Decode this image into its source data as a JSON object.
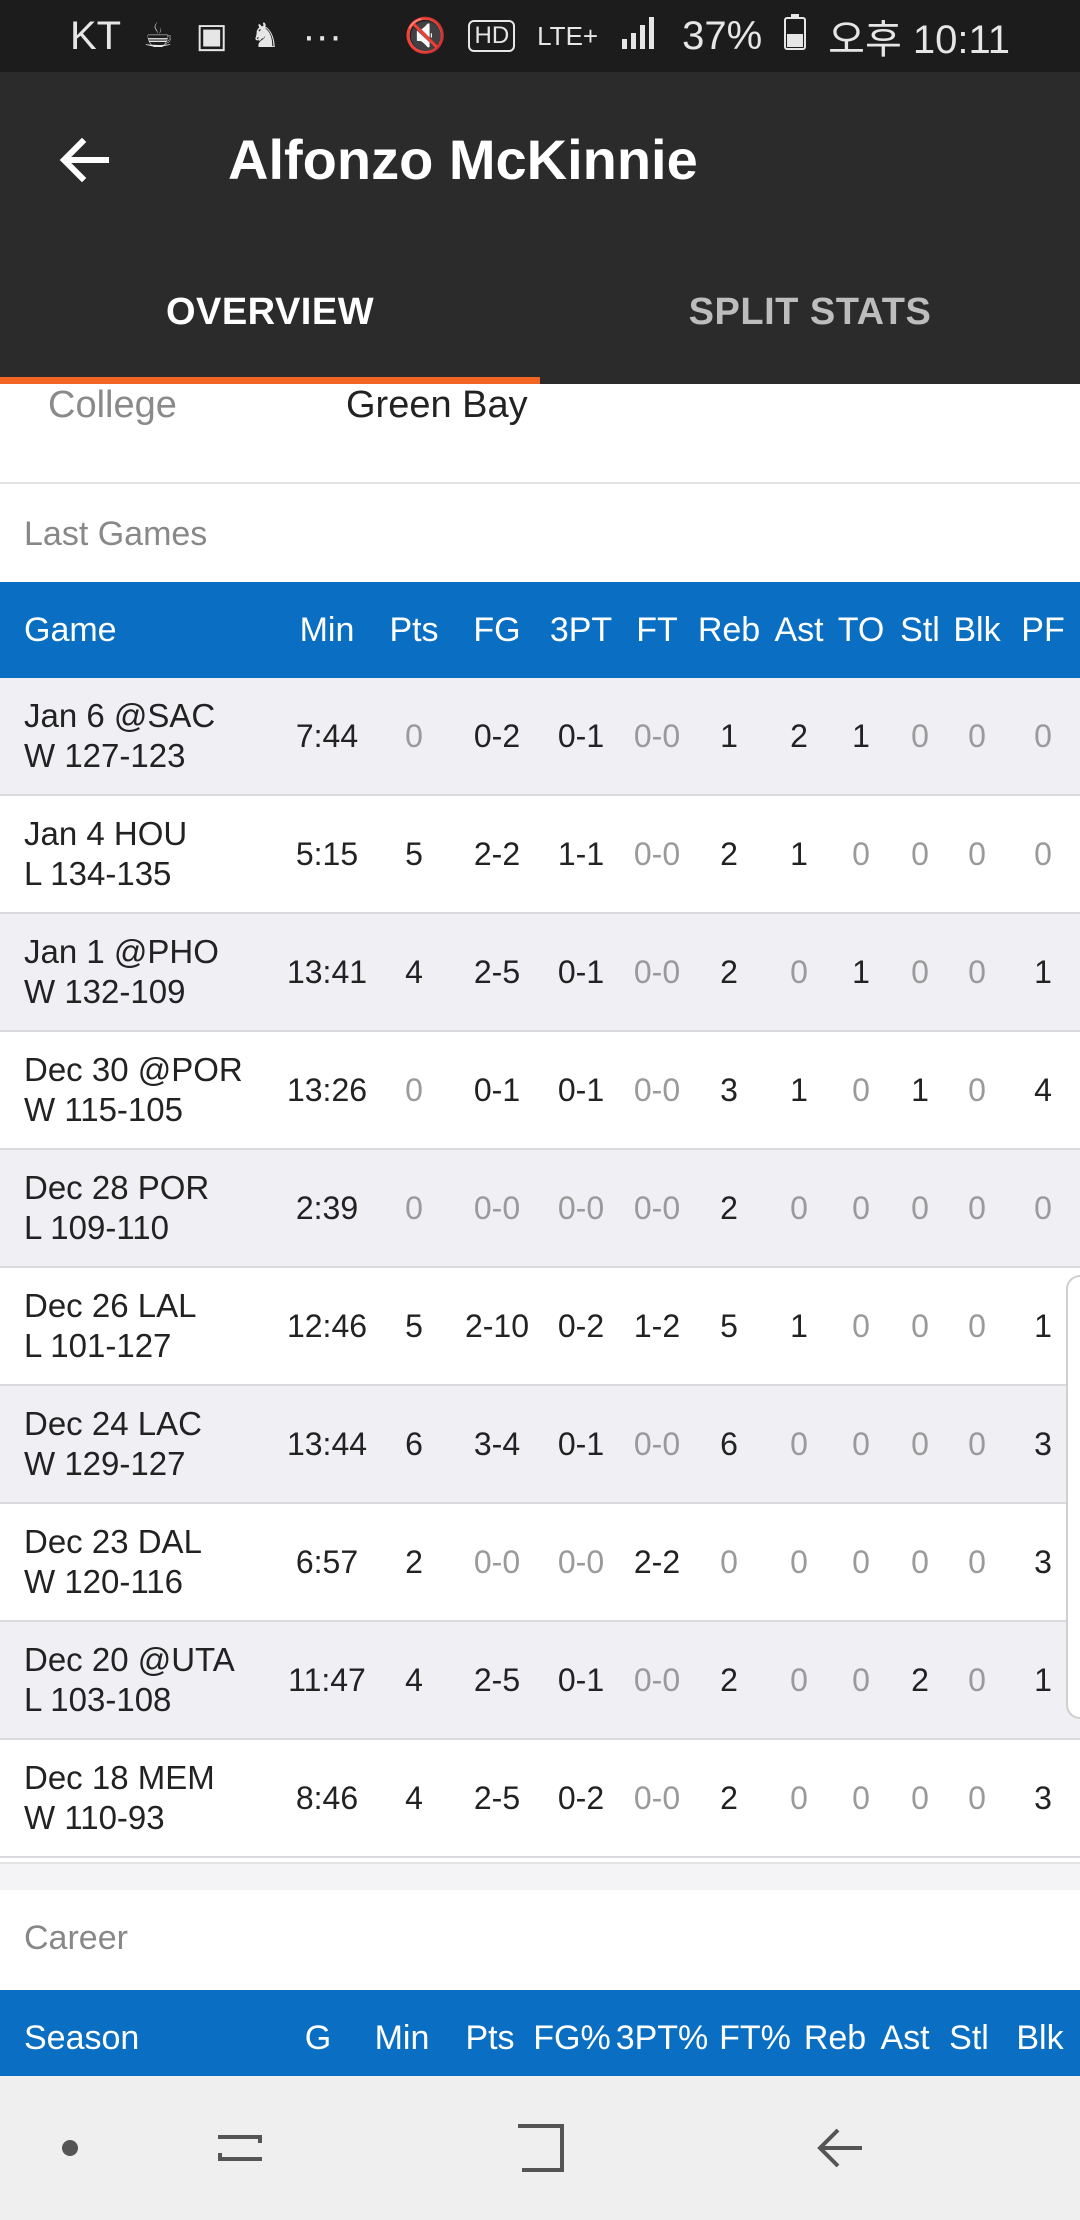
{
  "status_bar": {
    "carrier": "KT",
    "more": "···",
    "network": "LTE+",
    "battery": "37%",
    "time": "오후 10:11"
  },
  "header": {
    "title": "Alfonzo McKinnie"
  },
  "tabs": [
    {
      "label": "OVERVIEW",
      "active": true
    },
    {
      "label": "SPLIT STATS",
      "active": false
    }
  ],
  "profile": {
    "college_label": "College",
    "college_value": "Green Bay"
  },
  "last_games": {
    "section_title": "Last Games",
    "columns": [
      "Game",
      "Min",
      "Pts",
      "FG",
      "3PT",
      "FT",
      "Reb",
      "Ast",
      "TO",
      "Stl",
      "Blk",
      "PF"
    ],
    "rows": [
      {
        "date": "Jan 6 @SAC",
        "result": "W 127-123",
        "cells": [
          "7:44",
          "0",
          "0-2",
          "0-1",
          "0-0",
          "1",
          "2",
          "1",
          "0",
          "0",
          "0"
        ]
      },
      {
        "date": "Jan 4 HOU",
        "result": "L 134-135",
        "cells": [
          "5:15",
          "5",
          "2-2",
          "1-1",
          "0-0",
          "2",
          "1",
          "0",
          "0",
          "0",
          "0"
        ]
      },
      {
        "date": "Jan 1 @PHO",
        "result": "W 132-109",
        "cells": [
          "13:41",
          "4",
          "2-5",
          "0-1",
          "0-0",
          "2",
          "0",
          "1",
          "0",
          "0",
          "1"
        ]
      },
      {
        "date": "Dec 30 @POR",
        "result": "W 115-105",
        "cells": [
          "13:26",
          "0",
          "0-1",
          "0-1",
          "0-0",
          "3",
          "1",
          "0",
          "1",
          "0",
          "4"
        ]
      },
      {
        "date": "Dec 28 POR",
        "result": "L 109-110",
        "cells": [
          "2:39",
          "0",
          "0-0",
          "0-0",
          "0-0",
          "2",
          "0",
          "0",
          "0",
          "0",
          "0"
        ]
      },
      {
        "date": "Dec 26 LAL",
        "result": "L 101-127",
        "cells": [
          "12:46",
          "5",
          "2-10",
          "0-2",
          "1-2",
          "5",
          "1",
          "0",
          "0",
          "0",
          "1"
        ]
      },
      {
        "date": "Dec 24 LAC",
        "result": "W 129-127",
        "cells": [
          "13:44",
          "6",
          "3-4",
          "0-1",
          "0-0",
          "6",
          "0",
          "0",
          "0",
          "0",
          "3"
        ]
      },
      {
        "date": "Dec 23 DAL",
        "result": "W 120-116",
        "cells": [
          "6:57",
          "2",
          "0-0",
          "0-0",
          "2-2",
          "0",
          "0",
          "0",
          "0",
          "0",
          "3"
        ]
      },
      {
        "date": "Dec 20 @UTA",
        "result": "L 103-108",
        "cells": [
          "11:47",
          "4",
          "2-5",
          "0-1",
          "0-0",
          "2",
          "0",
          "0",
          "2",
          "0",
          "1"
        ]
      },
      {
        "date": "Dec 18 MEM",
        "result": "W 110-93",
        "cells": [
          "8:46",
          "4",
          "2-5",
          "0-2",
          "0-0",
          "2",
          "0",
          "0",
          "0",
          "0",
          "3"
        ]
      }
    ]
  },
  "career": {
    "section_title": "Career",
    "columns": [
      "Season",
      "G",
      "Min",
      "Pts",
      "FG%",
      "3PT%",
      "FT%",
      "Reb",
      "Ast",
      "Stl",
      "Blk"
    ]
  },
  "colors": {
    "toolbar": "#2b2b2b",
    "tab_indicator": "#f26522",
    "table_header": "#0a6fc2"
  },
  "icons": {
    "back": "back-arrow-icon",
    "nav_recent": "recent-apps-icon",
    "nav_home": "home-icon",
    "nav_back": "back-icon"
  }
}
